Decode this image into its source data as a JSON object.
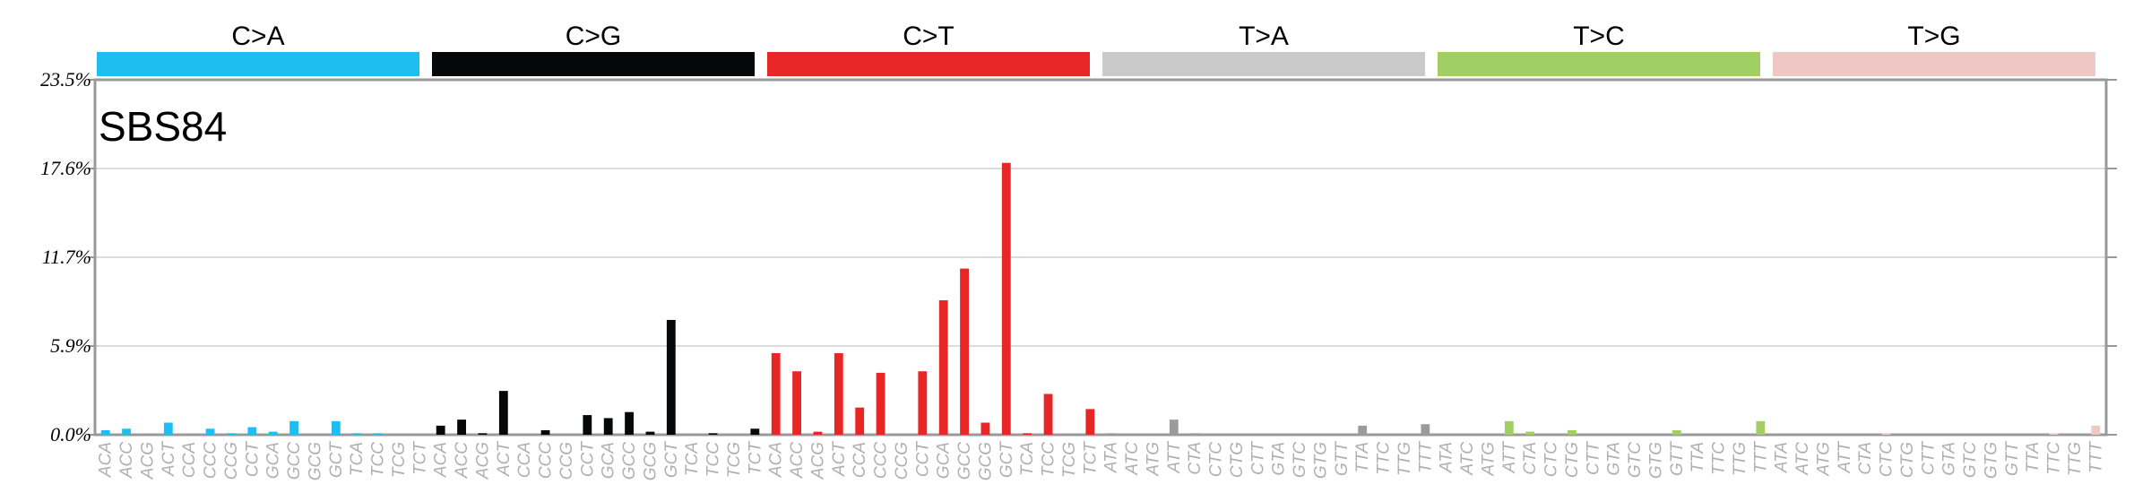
{
  "chart_data": {
    "type": "bar",
    "title": "SBS84",
    "ylim": [
      0,
      23.5
    ],
    "yticks": [
      "0.0%",
      "5.9%",
      "11.7%",
      "17.6%",
      "23.5%"
    ],
    "grid": true,
    "groups": [
      {
        "name": "C>A",
        "color": "#1ebff0"
      },
      {
        "name": "C>G",
        "color": "#050708"
      },
      {
        "name": "C>T",
        "color": "#e62725"
      },
      {
        "name": "T>A",
        "color": "#cbcacb"
      },
      {
        "name": "T>C",
        "color": "#a1cf64"
      },
      {
        "name": "T>G",
        "color": "#edc8c5"
      }
    ],
    "bar_colors": {
      "C>A": "#1ebff0",
      "C>G": "#050708",
      "C>T": "#e62725",
      "T>A": "#9b9b9b",
      "T>C": "#a1cf64",
      "T>G": "#edc8c5"
    },
    "categories": [
      "ACA",
      "ACC",
      "ACG",
      "ACT",
      "CCA",
      "CCC",
      "CCG",
      "CCT",
      "GCA",
      "GCC",
      "GCG",
      "GCT",
      "TCA",
      "TCC",
      "TCG",
      "TCT",
      "ACA",
      "ACC",
      "ACG",
      "ACT",
      "CCA",
      "CCC",
      "CCG",
      "CCT",
      "GCA",
      "GCC",
      "GCG",
      "GCT",
      "TCA",
      "TCC",
      "TCG",
      "TCT",
      "ACA",
      "ACC",
      "ACG",
      "ACT",
      "CCA",
      "CCC",
      "CCG",
      "CCT",
      "GCA",
      "GCC",
      "GCG",
      "GCT",
      "TCA",
      "TCC",
      "TCG",
      "TCT",
      "ATA",
      "ATC",
      "ATG",
      "ATT",
      "CTA",
      "CTC",
      "CTG",
      "CTT",
      "GTA",
      "GTC",
      "GTG",
      "GTT",
      "TTA",
      "TTC",
      "TTG",
      "TTT",
      "ATA",
      "ATC",
      "ATG",
      "ATT",
      "CTA",
      "CTC",
      "CTG",
      "CTT",
      "GTA",
      "GTC",
      "GTG",
      "GTT",
      "TTA",
      "TTC",
      "TTG",
      "TTT",
      "ATA",
      "ATC",
      "ATG",
      "ATT",
      "CTA",
      "CTC",
      "CTG",
      "CTT",
      "GTA",
      "GTC",
      "GTG",
      "GTT",
      "TTA",
      "TTC",
      "TTG",
      "TTT"
    ],
    "values": [
      0.3,
      0.4,
      0.0,
      0.8,
      0.0,
      0.4,
      0.1,
      0.5,
      0.2,
      0.9,
      0.0,
      0.9,
      0.1,
      0.1,
      0.0,
      0.0,
      0.6,
      1.0,
      0.1,
      2.9,
      0.0,
      0.3,
      0.0,
      1.3,
      1.1,
      1.5,
      0.2,
      7.6,
      0.0,
      0.1,
      0.0,
      0.4,
      5.4,
      4.2,
      0.2,
      5.4,
      1.8,
      4.1,
      0.0,
      4.2,
      8.9,
      11.0,
      0.8,
      18.0,
      0.1,
      2.7,
      0.0,
      1.7,
      0.1,
      0.0,
      0.0,
      1.0,
      0.1,
      0.0,
      0.0,
      0.0,
      0.0,
      0.0,
      0.0,
      0.0,
      0.6,
      0.0,
      0.0,
      0.7,
      0.0,
      0.0,
      0.0,
      0.9,
      0.2,
      0.0,
      0.3,
      0.0,
      0.0,
      0.0,
      0.0,
      0.3,
      0.0,
      0.0,
      0.0,
      0.9,
      0.0,
      0.0,
      0.0,
      0.0,
      0.0,
      0.1,
      0.0,
      0.0,
      0.0,
      0.0,
      0.0,
      0.0,
      0.0,
      0.1,
      0.0,
      0.6
    ]
  }
}
